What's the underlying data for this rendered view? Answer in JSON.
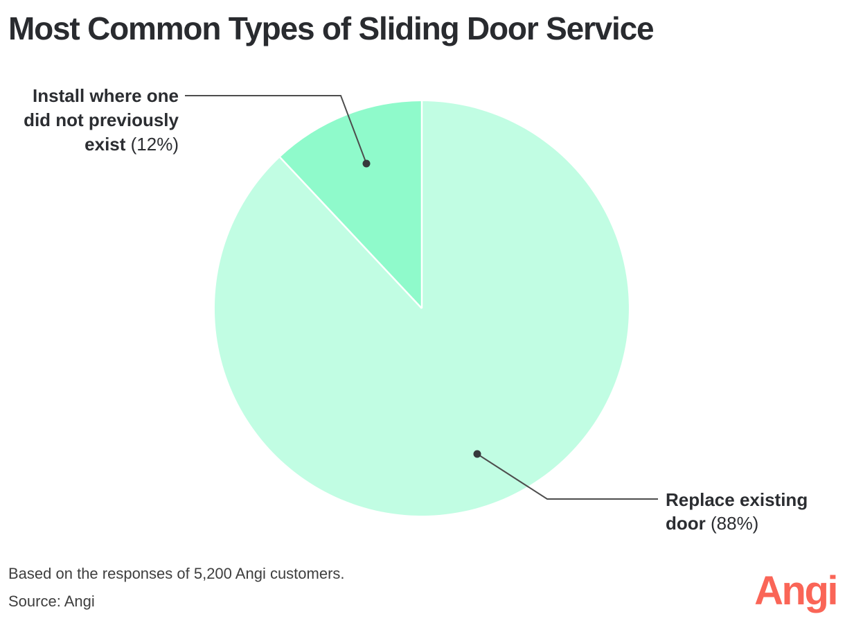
{
  "title": "Most Common Types of Sliding Door Service",
  "chart_data": {
    "type": "pie",
    "title": "Most Common Types of Sliding Door Service",
    "start_angle_deg": 0,
    "direction": "clockwise",
    "divider_color": "#ffffff",
    "slices": [
      {
        "id": "replace",
        "label": "Replace existing door",
        "pct": 88,
        "color": "#c1fde3"
      },
      {
        "id": "install",
        "label": "Install where one did not previously exist",
        "pct": 12,
        "color": "#8ffacb"
      }
    ],
    "note": "Based on the responses of 5,200 Angi customers.",
    "source": "Angi"
  },
  "callouts": {
    "install": {
      "line1": "Install where one",
      "line2": "did not previously",
      "line3_bold": "exist",
      "line3_rest": " (12%)"
    },
    "replace": {
      "line1": "Replace existing",
      "line2_bold": "door",
      "line2_rest": " (88%)"
    }
  },
  "footer": {
    "based_on": "Based on the responses of 5,200 Angi customers.",
    "source": "Source: Angi"
  },
  "logo": {
    "text": "Angi",
    "color": "#fa6557"
  },
  "style_colors": {
    "leader_line": "#4d4d4d",
    "dot": "#37393c",
    "title_text": "#292b2f"
  }
}
